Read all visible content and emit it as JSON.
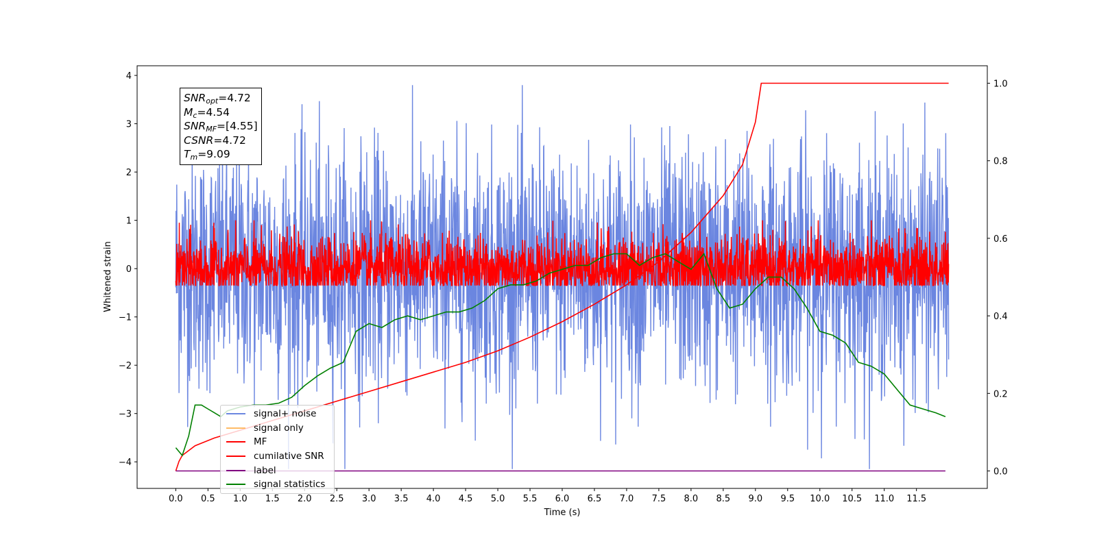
{
  "chart_data": {
    "type": "line",
    "title": "",
    "xlabel": "Time (s)",
    "ylabel": "Whitened strain",
    "y2label": "",
    "xlim": [
      -0.6,
      12.6
    ],
    "ylim": [
      -4.55,
      4.2
    ],
    "y2lim": [
      -0.045,
      1.045
    ],
    "grid": false,
    "legend_position": "lower-left",
    "x_ticks": [
      "0.0",
      "0.5",
      "1.0",
      "1.5",
      "2.0",
      "2.5",
      "3.0",
      "3.5",
      "4.0",
      "4.5",
      "5.0",
      "5.5",
      "6.0",
      "6.5",
      "7.0",
      "7.5",
      "8.0",
      "8.5",
      "9.0",
      "9.5",
      "10.0",
      "10.5",
      "11.0",
      "11.5"
    ],
    "y_ticks": [
      "4",
      "3",
      "2",
      "1",
      "0",
      "−1",
      "−2",
      "−3",
      "−4"
    ],
    "y2_ticks": [
      "1.0",
      "0.8",
      "0.6",
      "0.4",
      "0.2",
      "0.0"
    ],
    "series": [
      {
        "name": "signal+ noise",
        "axis": "left",
        "color": "#6b86e0",
        "noise_amplitude": 1.25,
        "y_range": [
          -4.15,
          3.8
        ]
      },
      {
        "name": "signal only",
        "axis": "left",
        "color": "#ffbb66",
        "values": []
      },
      {
        "name": "MF",
        "axis": "left",
        "color": "#ff0000",
        "noise_amplitude": 0.35,
        "y_range": [
          -0.35,
          1.0
        ]
      },
      {
        "name": "cumilative SNR",
        "axis": "right",
        "color": "#ff0000",
        "x": [
          0.0,
          0.05,
          0.1,
          0.3,
          0.6,
          1.0,
          1.5,
          2.0,
          2.5,
          3.0,
          3.5,
          4.0,
          4.5,
          5.0,
          5.5,
          6.0,
          6.5,
          7.0,
          7.5,
          8.0,
          8.5,
          8.8,
          9.0,
          9.09,
          12.0
        ],
        "values": [
          0.0,
          0.025,
          0.04,
          0.065,
          0.085,
          0.105,
          0.13,
          0.155,
          0.18,
          0.205,
          0.23,
          0.255,
          0.28,
          0.31,
          0.345,
          0.385,
          0.43,
          0.48,
          0.54,
          0.615,
          0.71,
          0.79,
          0.9,
          1.0,
          1.0
        ]
      },
      {
        "name": "label",
        "axis": "right",
        "color": "#800080",
        "x": [
          0.0,
          11.95
        ],
        "values": [
          0.0,
          0.0
        ]
      },
      {
        "name": "signal statistics",
        "axis": "right",
        "color": "#008000",
        "x": [
          0.0,
          0.1,
          0.2,
          0.3,
          0.4,
          0.5,
          0.6,
          0.7,
          0.8,
          1.0,
          1.2,
          1.4,
          1.6,
          1.8,
          2.0,
          2.2,
          2.4,
          2.6,
          2.8,
          3.0,
          3.2,
          3.4,
          3.6,
          3.8,
          4.0,
          4.2,
          4.4,
          4.6,
          4.8,
          5.0,
          5.2,
          5.4,
          5.6,
          5.8,
          6.0,
          6.2,
          6.4,
          6.6,
          6.8,
          7.0,
          7.2,
          7.4,
          7.6,
          7.8,
          8.0,
          8.2,
          8.4,
          8.6,
          8.8,
          9.0,
          9.2,
          9.4,
          9.6,
          9.8,
          10.0,
          10.2,
          10.4,
          10.6,
          10.8,
          11.0,
          11.2,
          11.4,
          11.6,
          11.8,
          11.95
        ],
        "values": [
          0.06,
          0.04,
          0.09,
          0.17,
          0.17,
          0.16,
          0.15,
          0.14,
          0.155,
          0.165,
          0.17,
          0.17,
          0.175,
          0.19,
          0.22,
          0.245,
          0.265,
          0.28,
          0.36,
          0.38,
          0.37,
          0.39,
          0.4,
          0.39,
          0.4,
          0.41,
          0.41,
          0.42,
          0.44,
          0.47,
          0.48,
          0.48,
          0.49,
          0.51,
          0.52,
          0.53,
          0.53,
          0.55,
          0.56,
          0.56,
          0.53,
          0.55,
          0.56,
          0.54,
          0.52,
          0.56,
          0.47,
          0.42,
          0.43,
          0.47,
          0.5,
          0.5,
          0.47,
          0.42,
          0.36,
          0.35,
          0.33,
          0.28,
          0.27,
          0.25,
          0.21,
          0.17,
          0.16,
          0.15,
          0.14
        ]
      }
    ],
    "annotation": {
      "snr_opt": "4.72",
      "mc": "4.54",
      "snr_mf": "[4.55]",
      "csnr": "4.72",
      "tm": "9.09"
    }
  },
  "stats_box": {
    "snr_opt_base": "SNR",
    "snr_opt_sub": "opt",
    "snr_opt_value": "=4.72",
    "mc_base": "M",
    "mc_sub": "c",
    "mc_value": "=4.54",
    "snr_mf_base": "SNR",
    "snr_mf_sub": "MF",
    "snr_mf_value": "=[4.55]",
    "csnr_base": "CSNR",
    "csnr_value": "=4.72",
    "tm_base": "T",
    "tm_sub": "m",
    "tm_value": "=9.09"
  },
  "legend": {
    "items": [
      {
        "label": "signal+ noise",
        "color": "#6b86e0"
      },
      {
        "label": "signal only",
        "color": "#ffbb66"
      },
      {
        "label": "MF",
        "color": "#ff0000"
      },
      {
        "label": "cumilative SNR",
        "color": "#ff0000"
      },
      {
        "label": "label",
        "color": "#800080"
      },
      {
        "label": "signal statistics",
        "color": "#008000"
      }
    ]
  }
}
